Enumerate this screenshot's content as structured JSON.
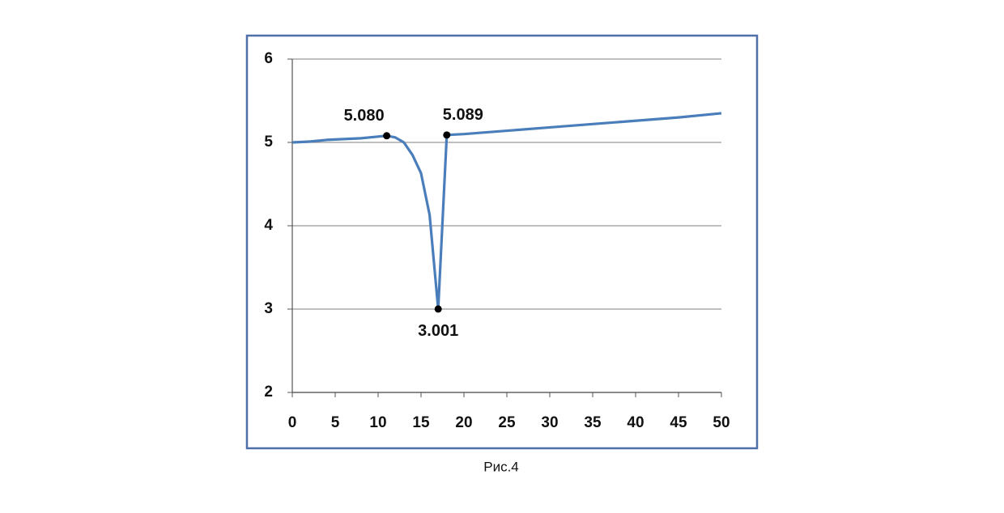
{
  "chart_data": {
    "type": "line",
    "caption": "Рис.4",
    "x": [
      0,
      2,
      4,
      6,
      8,
      10,
      11,
      12,
      13,
      14,
      15,
      16,
      17,
      18,
      20,
      25,
      30,
      35,
      40,
      45,
      50
    ],
    "series": [
      {
        "color": "#4a7ebb",
        "values": [
          5.0,
          5.01,
          5.03,
          5.04,
          5.05,
          5.07,
          5.08,
          5.06,
          5.0,
          4.85,
          4.63,
          4.13,
          3.001,
          5.089,
          5.1,
          5.14,
          5.18,
          5.22,
          5.26,
          5.3,
          5.35
        ]
      }
    ],
    "annotations": [
      {
        "x": 11,
        "y": 5.08,
        "label": "5.080"
      },
      {
        "x": 17,
        "y": 3.001,
        "label": "3.001"
      },
      {
        "x": 18,
        "y": 5.089,
        "label": "5.089"
      }
    ],
    "xlim": [
      0,
      50
    ],
    "xticks": [
      0,
      5,
      10,
      15,
      20,
      25,
      30,
      35,
      40,
      45,
      50
    ],
    "ylim": [
      2,
      6
    ],
    "yticks": [
      2,
      3,
      4,
      5,
      6
    ],
    "grid": true
  }
}
